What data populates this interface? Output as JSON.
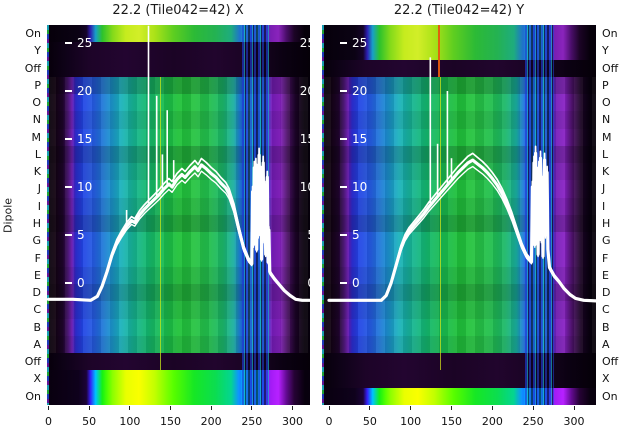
{
  "chart_data": {
    "type": "heatmap",
    "subtype": "heatmap with overlaid line spectra (2 panels)",
    "ylabel": "Dipole",
    "rows": [
      "On",
      "Y",
      "Off",
      "P",
      "O",
      "N",
      "M",
      "L",
      "K",
      "J",
      "I",
      "H",
      "G",
      "F",
      "E",
      "D",
      "C",
      "B",
      "A",
      "Off",
      "X",
      "On"
    ],
    "x_ticks": [
      0,
      50,
      100,
      150,
      200,
      250,
      300
    ],
    "overlay_ticks": [
      25,
      20,
      15,
      10,
      5,
      0
    ],
    "colors": {
      "background": "#ffffff",
      "curve": "#ffffff",
      "text": "#1a1a1a",
      "heat_black": "#06000a",
      "heat_purple": "#6014a2",
      "heat_blue": "#1f3fd4",
      "heat_cyan": "#19b0c4",
      "heat_green": "#1cb032",
      "heat_yellow": "#d2ee28",
      "rfi_orange": "#e6590e"
    },
    "panels": [
      {
        "title": "22.2 (Tile042=42) X",
        "polarization": "X",
        "row_kinds": [
          "on",
          "dark",
          "dark",
          "dip",
          "dip",
          "dip",
          "dip",
          "dip",
          "dip",
          "dip",
          "dip",
          "dip",
          "dip",
          "dip",
          "dip",
          "dip",
          "dip",
          "dip",
          "dip",
          "dark",
          "hot",
          "hot"
        ],
        "curve_pre": [
          [
            0,
            -1.7
          ],
          [
            30,
            -1.7
          ],
          [
            52,
            -1.8
          ],
          [
            60,
            -1.4
          ],
          [
            66,
            -0.3
          ],
          [
            72,
            1.2
          ],
          [
            78,
            2.9
          ],
          [
            84,
            4.2
          ],
          [
            90,
            5.1
          ],
          [
            96,
            5.9
          ],
          [
            102,
            6.5
          ],
          [
            106,
            6.3
          ],
          [
            112,
            7.1
          ],
          [
            118,
            7.7
          ],
          [
            124,
            8.2
          ],
          [
            130,
            8.7
          ],
          [
            136,
            9.2
          ],
          [
            142,
            9.8
          ],
          [
            148,
            10.3
          ],
          [
            152,
            10.0
          ],
          [
            158,
            10.8
          ],
          [
            164,
            11.3
          ],
          [
            168,
            11.0
          ],
          [
            174,
            11.6
          ],
          [
            180,
            12.1
          ],
          [
            184,
            11.7
          ],
          [
            188,
            12.3
          ],
          [
            194,
            11.9
          ],
          [
            200,
            11.4
          ],
          [
            206,
            11.0
          ],
          [
            212,
            10.4
          ],
          [
            218,
            9.9
          ],
          [
            222,
            9.3
          ],
          [
            228,
            7.8
          ],
          [
            234,
            5.6
          ],
          [
            240,
            3.6
          ],
          [
            246,
            2.4
          ]
        ],
        "curve_noise": [
          [
            250,
            2.0
          ],
          [
            251,
            9.5
          ],
          [
            252,
            4.0
          ],
          [
            253,
            12.0
          ],
          [
            254,
            6.5
          ],
          [
            255,
            12.3
          ],
          [
            256,
            3.5
          ],
          [
            257,
            10.5
          ],
          [
            258,
            5.0
          ],
          [
            259,
            13.3
          ],
          [
            260,
            7.0
          ],
          [
            261,
            11.5
          ],
          [
            262,
            2.5
          ],
          [
            263,
            9.0
          ],
          [
            264,
            12.5
          ],
          [
            265,
            4.5
          ],
          [
            266,
            10.0
          ],
          [
            267,
            3.0
          ],
          [
            268,
            8.0
          ],
          [
            269,
            11.0
          ],
          [
            270,
            2.2
          ],
          [
            271,
            5.5
          ],
          [
            272,
            1.2
          ]
        ],
        "curve_post": [
          [
            273,
            1.0
          ],
          [
            278,
            0.4
          ],
          [
            284,
            -0.2
          ],
          [
            290,
            -0.8
          ],
          [
            297,
            -1.3
          ],
          [
            304,
            -1.7
          ],
          [
            312,
            -1.8
          ],
          [
            322,
            -1.8
          ]
        ],
        "spikes": [
          [
            96,
            7.6
          ],
          [
            123,
            26.8
          ],
          [
            133,
            19.5
          ],
          [
            140,
            13.4
          ],
          [
            146,
            18.0
          ],
          [
            154,
            12.8
          ]
        ],
        "rfi_lines": [
          {
            "x": 137,
            "row_start": 3,
            "row_end": 19,
            "color": "#c6e818",
            "w": 1,
            "o": 0.75
          }
        ]
      },
      {
        "title": "22.2 (Tile042=42) Y",
        "polarization": "Y",
        "row_kinds": [
          "on",
          "on",
          "dark",
          "dip",
          "dip",
          "dip",
          "dip",
          "dip",
          "dip",
          "dip",
          "dip",
          "dip",
          "dip",
          "dip",
          "dip",
          "dip",
          "dip",
          "dip",
          "dip",
          "dark",
          "dark",
          "hot"
        ],
        "curve_pre": [
          [
            0,
            -1.8
          ],
          [
            40,
            -1.8
          ],
          [
            64,
            -1.8
          ],
          [
            70,
            -1.3
          ],
          [
            76,
            0.0
          ],
          [
            82,
            1.8
          ],
          [
            88,
            3.6
          ],
          [
            93,
            4.7
          ],
          [
            98,
            5.4
          ],
          [
            104,
            6.0
          ],
          [
            110,
            6.6
          ],
          [
            116,
            7.2
          ],
          [
            122,
            7.9
          ],
          [
            128,
            8.5
          ],
          [
            134,
            9.1
          ],
          [
            140,
            9.7
          ],
          [
            146,
            10.3
          ],
          [
            152,
            10.9
          ],
          [
            158,
            11.5
          ],
          [
            164,
            12.0
          ],
          [
            170,
            12.5
          ],
          [
            176,
            12.8
          ],
          [
            182,
            12.4
          ],
          [
            188,
            12.0
          ],
          [
            194,
            11.5
          ],
          [
            200,
            10.9
          ],
          [
            206,
            10.2
          ],
          [
            212,
            9.3
          ],
          [
            218,
            8.2
          ],
          [
            224,
            6.9
          ],
          [
            230,
            5.4
          ],
          [
            236,
            3.9
          ],
          [
            242,
            2.8
          ]
        ],
        "curve_noise": [
          [
            248,
            2.2
          ],
          [
            249,
            10.0
          ],
          [
            250,
            5.0
          ],
          [
            251,
            12.5
          ],
          [
            252,
            4.0
          ],
          [
            253,
            13.5
          ],
          [
            254,
            7.0
          ],
          [
            255,
            11.0
          ],
          [
            256,
            3.0
          ],
          [
            257,
            12.0
          ],
          [
            258,
            6.0
          ],
          [
            259,
            13.0
          ],
          [
            260,
            4.5
          ],
          [
            261,
            10.5
          ],
          [
            262,
            2.8
          ],
          [
            263,
            9.5
          ],
          [
            264,
            12.8
          ],
          [
            265,
            5.0
          ],
          [
            266,
            8.5
          ],
          [
            267,
            11.5
          ],
          [
            268,
            3.5
          ]
        ],
        "curve_post": [
          [
            270,
            1.6
          ],
          [
            276,
            0.7
          ],
          [
            282,
            0.1
          ],
          [
            288,
            -0.6
          ],
          [
            295,
            -1.2
          ],
          [
            302,
            -1.6
          ],
          [
            312,
            -1.8
          ],
          [
            336,
            -1.9
          ]
        ],
        "spikes": [
          [
            124,
            23.5
          ],
          [
            133,
            14.5
          ],
          [
            145,
            20.0
          ],
          [
            150,
            13.0
          ]
        ],
        "rfi_lines": [
          {
            "x": 134,
            "row_start": 0,
            "row_end": 2,
            "color": "#e6590e",
            "w": 2,
            "o": 0.95
          },
          {
            "x": 136,
            "row_start": 3,
            "row_end": 19,
            "color": "#d8e818",
            "w": 1,
            "o": 0.7
          }
        ]
      }
    ]
  }
}
